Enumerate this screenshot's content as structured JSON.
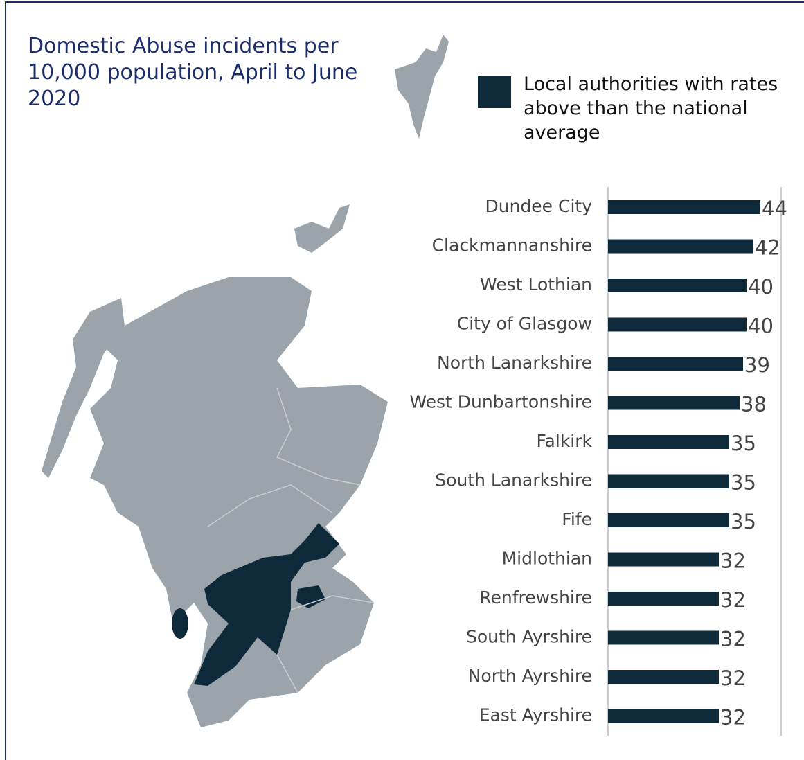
{
  "chart_data": {
    "type": "barh",
    "title": "Domestic Abuse incidents per 10,000 population, April to June 2020",
    "categories": [
      "Dundee City",
      "Clackmannanshire",
      "West Lothian",
      "City of Glasgow",
      "North Lanarkshire",
      "West Dunbartonshire",
      "Falkirk",
      "South Lanarkshire",
      "Fife",
      "Midlothian",
      "Renfrewshire",
      "South Ayrshire",
      "North Ayrshire",
      "East Ayrshire"
    ],
    "series": [
      {
        "name": "Local authorities with rates above than the national average",
        "color": "#0e2939",
        "values": [
          44,
          42,
          40,
          40,
          39,
          38,
          35,
          35,
          35,
          32,
          32,
          32,
          32,
          32
        ]
      }
    ],
    "xlim": [
      0,
      50
    ]
  }
}
